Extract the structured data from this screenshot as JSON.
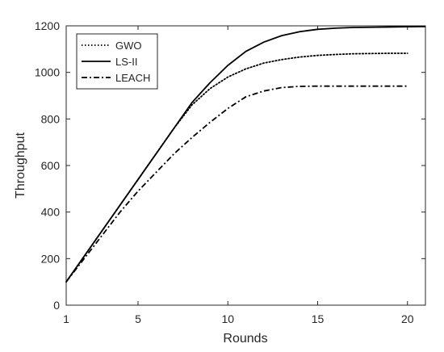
{
  "chart_data": {
    "type": "line",
    "xlabel": "Rounds",
    "ylabel": "Throughput",
    "xlim": [
      1,
      21
    ],
    "ylim": [
      0,
      1200
    ],
    "grid": false,
    "legend_position": "top-left",
    "x_ticks": [
      "1",
      "5",
      "10",
      "15",
      "20"
    ],
    "y_ticks": [
      "0",
      "200",
      "400",
      "600",
      "800",
      "1000",
      "1200"
    ],
    "x": [
      1,
      2,
      3,
      4,
      5,
      6,
      7,
      8,
      9,
      10,
      11,
      12,
      13,
      14,
      15,
      16,
      17,
      18,
      19,
      20,
      21
    ],
    "series": [
      {
        "name": "GWO",
        "style": "dotted",
        "color": "#000000",
        "x": [
          1,
          2,
          3,
          4,
          5,
          6,
          7,
          8,
          9,
          10,
          11,
          12,
          13,
          14,
          15,
          16,
          17,
          18,
          19,
          20
        ],
        "values": [
          100,
          210,
          320,
          430,
          540,
          650,
          760,
          860,
          930,
          980,
          1015,
          1040,
          1055,
          1066,
          1073,
          1077,
          1080,
          1081,
          1082,
          1082
        ]
      },
      {
        "name": "LS-II",
        "style": "solid",
        "color": "#000000",
        "x": [
          1,
          2,
          3,
          4,
          5,
          6,
          7,
          8,
          9,
          10,
          11,
          12,
          13,
          14,
          15,
          16,
          17,
          18,
          19,
          20,
          21
        ],
        "values": [
          100,
          210,
          320,
          430,
          540,
          650,
          760,
          870,
          955,
          1030,
          1090,
          1130,
          1158,
          1175,
          1185,
          1190,
          1193,
          1194,
          1195,
          1196,
          1197
        ]
      },
      {
        "name": "LEACH",
        "style": "dashdot",
        "color": "#000000",
        "x": [
          1,
          2,
          3,
          4,
          5,
          6,
          7,
          8,
          9,
          10,
          11,
          12,
          13,
          14,
          15,
          16,
          17,
          18,
          19,
          20
        ],
        "values": [
          100,
          200,
          300,
          400,
          490,
          570,
          650,
          720,
          785,
          845,
          895,
          920,
          935,
          940,
          941,
          941,
          941,
          941,
          941,
          941
        ]
      }
    ]
  }
}
